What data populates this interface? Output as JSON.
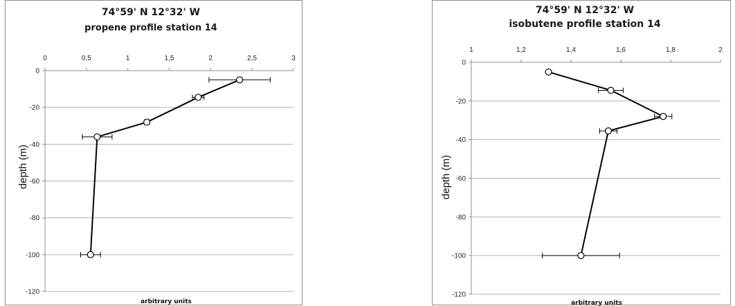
{
  "charts": [
    {
      "id": "left",
      "title_line1": "74°59' N  12°32' W",
      "title_line2": "propene profile station 14",
      "ylabel": "depth (m)",
      "xlabel": "arbitrary units"
    },
    {
      "id": "right",
      "title_line1": "74°59' N  12°32' W",
      "title_line2": "isobutene profile station 14",
      "ylabel": "depth (m)",
      "xlabel": "arbitrary units"
    }
  ],
  "chart_data": [
    {
      "type": "scatter",
      "title": "74°59' N  12°32' W / propene profile station 14",
      "xlabel": "arbitrary units",
      "ylabel": "depth (m)",
      "xlim": [
        0,
        3
      ],
      "ylim": [
        -120,
        0
      ],
      "x_ticks": [
        "0",
        "0,5",
        "1",
        "1,5",
        "2",
        "2,5",
        "3"
      ],
      "x_tick_values": [
        0,
        0.5,
        1,
        1.5,
        2,
        2.5,
        3
      ],
      "y_ticks": [
        "0",
        "-20",
        "-40",
        "-60",
        "-80",
        "-100",
        "-120"
      ],
      "y_tick_values": [
        0,
        -20,
        -40,
        -60,
        -80,
        -100,
        -120
      ],
      "x_axis_position": "top",
      "grid": "horizontal",
      "series": [
        {
          "points": [
            {
              "x": 2.35,
              "y": -5,
              "err": 0.37
            },
            {
              "x": 1.85,
              "y": -14.5,
              "err": 0.07
            },
            {
              "x": 1.23,
              "y": -28,
              "err": 0.03
            },
            {
              "x": 0.63,
              "y": -36,
              "err": 0.18
            },
            {
              "x": 0.55,
              "y": -100,
              "err": 0.12
            }
          ]
        }
      ]
    },
    {
      "type": "scatter",
      "title": "74°59' N  12°32' W / isobutene profile station 14",
      "xlabel": "arbitrary units",
      "ylabel": "depth (m)",
      "xlim": [
        1,
        2
      ],
      "ylim": [
        -120,
        0
      ],
      "x_ticks": [
        "1",
        "1,2",
        "1,4",
        "1,6",
        "1,8",
        "2"
      ],
      "x_tick_values": [
        1,
        1.2,
        1.4,
        1.6,
        1.8,
        2
      ],
      "y_ticks": [
        "0",
        "-20",
        "-40",
        "-60",
        "-80",
        "-100",
        "-120"
      ],
      "y_tick_values": [
        0,
        -20,
        -40,
        -60,
        -80,
        -100,
        -120
      ],
      "x_axis_position": "top",
      "grid": "horizontal",
      "series": [
        {
          "points": [
            {
              "x": 1.31,
              "y": -5,
              "err": 0.0
            },
            {
              "x": 1.56,
              "y": -14.5,
              "err": 0.05
            },
            {
              "x": 1.77,
              "y": -28,
              "err": 0.035
            },
            {
              "x": 1.55,
              "y": -35.5,
              "err": 0.035
            },
            {
              "x": 1.44,
              "y": -100,
              "err": 0.155
            }
          ]
        }
      ]
    }
  ]
}
